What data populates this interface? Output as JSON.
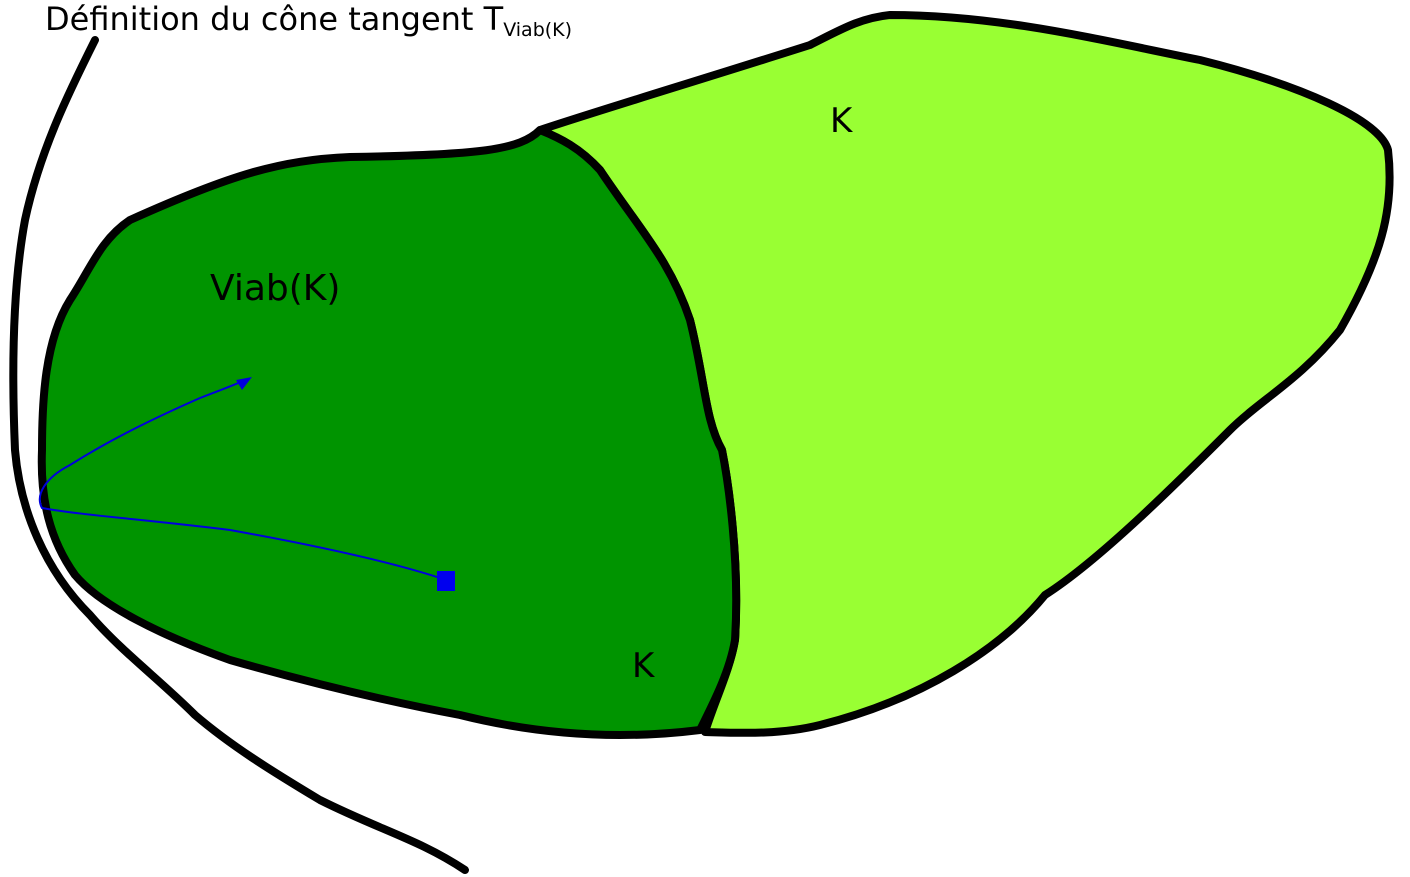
{
  "title": {
    "main": "Définition du cône tangent T",
    "subscript": "Viab(K)"
  },
  "labels": {
    "k_outer": "K",
    "viab": "Viab(K)",
    "k_inner": "K"
  }
}
